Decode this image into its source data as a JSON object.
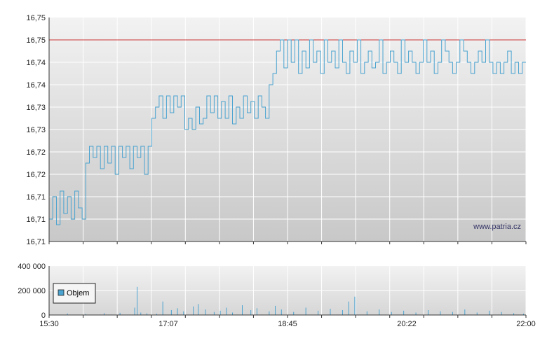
{
  "watermark": "www.patria.cz",
  "colors": {
    "price_line": "#4aa3d0",
    "reference_line": "#cc3333",
    "grid": "#ffffff",
    "plot_bg_top": "#f2f2f2",
    "plot_bg_bottom": "#c9c9c9",
    "volume_bar": "#4aa3d0"
  },
  "chart_data": [
    {
      "type": "line",
      "name": "price",
      "y_tick_labels": [
        "16,75",
        "16,75",
        "16,74",
        "16,74",
        "16,73",
        "16,73",
        "16,72",
        "16,72",
        "16,71",
        "16,71",
        "16,71"
      ],
      "ylim": [
        16.71,
        16.75
      ],
      "reference_value": 16.746,
      "x_tick_labels": [
        "15:30",
        "17:07",
        "18:45",
        "20:22",
        "22:00"
      ],
      "xlim_minutes": [
        930,
        1320
      ],
      "points": [
        [
          930,
          16.714
        ],
        [
          933,
          16.718
        ],
        [
          936,
          16.713
        ],
        [
          939,
          16.719
        ],
        [
          942,
          16.715
        ],
        [
          945,
          16.718
        ],
        [
          948,
          16.714
        ],
        [
          951,
          16.719
        ],
        [
          954,
          16.716
        ],
        [
          957,
          16.714
        ],
        [
          960,
          16.724
        ],
        [
          963,
          16.727
        ],
        [
          966,
          16.725
        ],
        [
          969,
          16.727
        ],
        [
          972,
          16.723
        ],
        [
          975,
          16.727
        ],
        [
          978,
          16.724
        ],
        [
          981,
          16.727
        ],
        [
          984,
          16.722
        ],
        [
          987,
          16.727
        ],
        [
          990,
          16.725
        ],
        [
          993,
          16.727
        ],
        [
          996,
          16.723
        ],
        [
          999,
          16.727
        ],
        [
          1002,
          16.725
        ],
        [
          1005,
          16.727
        ],
        [
          1008,
          16.722
        ],
        [
          1011,
          16.727
        ],
        [
          1014,
          16.732
        ],
        [
          1017,
          16.734
        ],
        [
          1020,
          16.736
        ],
        [
          1023,
          16.732
        ],
        [
          1026,
          16.736
        ],
        [
          1029,
          16.733
        ],
        [
          1032,
          16.736
        ],
        [
          1035,
          16.734
        ],
        [
          1038,
          16.736
        ],
        [
          1041,
          16.73
        ],
        [
          1044,
          16.732
        ],
        [
          1047,
          16.73
        ],
        [
          1050,
          16.734
        ],
        [
          1053,
          16.731
        ],
        [
          1056,
          16.732
        ],
        [
          1059,
          16.736
        ],
        [
          1062,
          16.733
        ],
        [
          1065,
          16.736
        ],
        [
          1068,
          16.732
        ],
        [
          1071,
          16.735
        ],
        [
          1074,
          16.732
        ],
        [
          1077,
          16.736
        ],
        [
          1080,
          16.731
        ],
        [
          1083,
          16.734
        ],
        [
          1086,
          16.732
        ],
        [
          1089,
          16.736
        ],
        [
          1092,
          16.733
        ],
        [
          1095,
          16.735
        ],
        [
          1098,
          16.732
        ],
        [
          1101,
          16.736
        ],
        [
          1104,
          16.734
        ],
        [
          1107,
          16.732
        ],
        [
          1110,
          16.738
        ],
        [
          1113,
          16.74
        ],
        [
          1116,
          16.744
        ],
        [
          1119,
          16.746
        ],
        [
          1122,
          16.741
        ],
        [
          1125,
          16.746
        ],
        [
          1128,
          16.742
        ],
        [
          1131,
          16.746
        ],
        [
          1134,
          16.74
        ],
        [
          1137,
          16.744
        ],
        [
          1140,
          16.741
        ],
        [
          1143,
          16.746
        ],
        [
          1146,
          16.742
        ],
        [
          1149,
          16.744
        ],
        [
          1152,
          16.74
        ],
        [
          1155,
          16.746
        ],
        [
          1158,
          16.742
        ],
        [
          1161,
          16.744
        ],
        [
          1164,
          16.741
        ],
        [
          1167,
          16.746
        ],
        [
          1170,
          16.742
        ],
        [
          1173,
          16.74
        ],
        [
          1176,
          16.744
        ],
        [
          1179,
          16.742
        ],
        [
          1182,
          16.746
        ],
        [
          1185,
          16.74
        ],
        [
          1188,
          16.742
        ],
        [
          1191,
          16.744
        ],
        [
          1194,
          16.741
        ],
        [
          1197,
          16.742
        ],
        [
          1200,
          16.746
        ],
        [
          1203,
          16.74
        ],
        [
          1206,
          16.742
        ],
        [
          1209,
          16.744
        ],
        [
          1212,
          16.742
        ],
        [
          1215,
          16.74
        ],
        [
          1218,
          16.746
        ],
        [
          1221,
          16.742
        ],
        [
          1224,
          16.744
        ],
        [
          1227,
          16.742
        ],
        [
          1230,
          16.74
        ],
        [
          1233,
          16.742
        ],
        [
          1236,
          16.746
        ],
        [
          1239,
          16.742
        ],
        [
          1242,
          16.744
        ],
        [
          1245,
          16.74
        ],
        [
          1248,
          16.742
        ],
        [
          1251,
          16.746
        ],
        [
          1254,
          16.744
        ],
        [
          1257,
          16.742
        ],
        [
          1260,
          16.74
        ],
        [
          1263,
          16.742
        ],
        [
          1266,
          16.746
        ],
        [
          1269,
          16.744
        ],
        [
          1272,
          16.742
        ],
        [
          1275,
          16.74
        ],
        [
          1278,
          16.742
        ],
        [
          1281,
          16.744
        ],
        [
          1284,
          16.742
        ],
        [
          1287,
          16.746
        ],
        [
          1290,
          16.742
        ],
        [
          1293,
          16.74
        ],
        [
          1296,
          16.742
        ],
        [
          1299,
          16.74
        ],
        [
          1302,
          16.742
        ],
        [
          1305,
          16.744
        ],
        [
          1308,
          16.74
        ],
        [
          1311,
          16.742
        ],
        [
          1314,
          16.74
        ],
        [
          1317,
          16.742
        ],
        [
          1320,
          16.742
        ]
      ]
    },
    {
      "type": "bar",
      "name": "volume",
      "legend": "Objem",
      "y_tick_labels": [
        "400 000",
        "200 000",
        "0"
      ],
      "ylim": [
        0,
        400000
      ],
      "x_tick_labels": [
        "15:30",
        "17:07",
        "18:45",
        "20:22",
        "22:00"
      ],
      "xlim_minutes": [
        930,
        1320
      ],
      "bars": [
        [
          945,
          12000
        ],
        [
          960,
          8000
        ],
        [
          975,
          15000
        ],
        [
          988,
          18000
        ],
        [
          1000,
          60000
        ],
        [
          1002,
          230000
        ],
        [
          1005,
          20000
        ],
        [
          1010,
          14000
        ],
        [
          1018,
          10000
        ],
        [
          1023,
          110000
        ],
        [
          1030,
          40000
        ],
        [
          1035,
          55000
        ],
        [
          1040,
          30000
        ],
        [
          1048,
          70000
        ],
        [
          1052,
          90000
        ],
        [
          1058,
          45000
        ],
        [
          1065,
          25000
        ],
        [
          1070,
          35000
        ],
        [
          1075,
          60000
        ],
        [
          1080,
          20000
        ],
        [
          1088,
          80000
        ],
        [
          1095,
          40000
        ],
        [
          1100,
          55000
        ],
        [
          1110,
          30000
        ],
        [
          1115,
          75000
        ],
        [
          1120,
          45000
        ],
        [
          1130,
          25000
        ],
        [
          1140,
          60000
        ],
        [
          1150,
          35000
        ],
        [
          1160,
          50000
        ],
        [
          1170,
          40000
        ],
        [
          1175,
          110000
        ],
        [
          1180,
          150000
        ],
        [
          1190,
          30000
        ],
        [
          1200,
          45000
        ],
        [
          1210,
          25000
        ],
        [
          1220,
          35000
        ],
        [
          1230,
          20000
        ],
        [
          1240,
          40000
        ],
        [
          1250,
          30000
        ],
        [
          1260,
          25000
        ],
        [
          1270,
          45000
        ],
        [
          1280,
          20000
        ],
        [
          1290,
          35000
        ],
        [
          1300,
          25000
        ],
        [
          1310,
          15000
        ],
        [
          1318,
          10000
        ]
      ]
    }
  ]
}
